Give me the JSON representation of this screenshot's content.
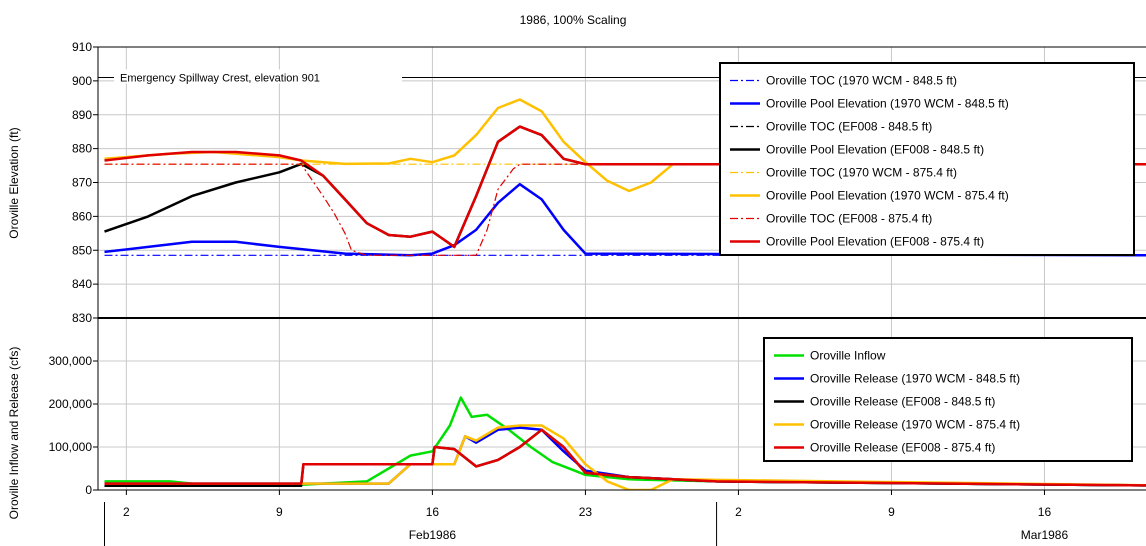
{
  "chart_data": [
    {
      "type": "line",
      "title": "1986, 100% Scaling",
      "ylabel": "Oroville Elevation (ft)",
      "ylim": [
        830,
        910
      ],
      "yticks": [
        "830",
        "840",
        "850",
        "860",
        "870",
        "880",
        "890",
        "900",
        "910"
      ],
      "xlim": [
        "1986-02-01",
        "1986-03-22"
      ],
      "x_day_ticks": [
        "2",
        "9",
        "16",
        "23",
        "2",
        "9",
        "16"
      ],
      "x_month_labels": [
        "Feb1986",
        "Mar1986"
      ],
      "grid": true,
      "legend_position": "top-right",
      "annotation": {
        "text": "Emergency Spillway Crest, elevation 901",
        "y": 901
      },
      "series": [
        {
          "name": "Oroville TOC (1970 WCM - 848.5 ft)",
          "color": "#0000ff",
          "dash": "dashdot",
          "points": [
            [
              "1986-02-01",
              848.5
            ],
            [
              "1986-03-22",
              848.5
            ]
          ]
        },
        {
          "name": "Oroville Pool Elevation (1970 WCM - 848.5 ft)",
          "color": "#0000ff",
          "dash": "solid",
          "points": [
            [
              "1986-02-01",
              849.5
            ],
            [
              "1986-02-03",
              851
            ],
            [
              "1986-02-05",
              852.5
            ],
            [
              "1986-02-07",
              852.5
            ],
            [
              "1986-02-09",
              851
            ],
            [
              "1986-02-12",
              849
            ],
            [
              "1986-02-15",
              848.5
            ],
            [
              "1986-02-16",
              849
            ],
            [
              "1986-02-17",
              851.5
            ],
            [
              "1986-02-18",
              856
            ],
            [
              "1986-02-19",
              864
            ],
            [
              "1986-02-20",
              869.5
            ],
            [
              "1986-02-21",
              865
            ],
            [
              "1986-02-22",
              856
            ],
            [
              "1986-02-23",
              849
            ],
            [
              "1986-03-22",
              848.5
            ]
          ]
        },
        {
          "name": "Oroville TOC (EF008 - 848.5 ft)",
          "color": "#000000",
          "dash": "dashdot",
          "points": []
        },
        {
          "name": "Oroville Pool Elevation (EF008 - 848.5 ft)",
          "color": "#000000",
          "dash": "solid",
          "points": [
            [
              "1986-02-01",
              855.5
            ],
            [
              "1986-02-03",
              860
            ],
            [
              "1986-02-05",
              866
            ],
            [
              "1986-02-07",
              870
            ],
            [
              "1986-02-09",
              873
            ],
            [
              "1986-02-10",
              875.5
            ],
            [
              "1986-02-11",
              872
            ],
            [
              "1986-02-12",
              865
            ],
            [
              "1986-02-13",
              858
            ],
            [
              "1986-02-14",
              854.5
            ],
            [
              "1986-02-15",
              854
            ],
            [
              "1986-02-16",
              855.5
            ],
            [
              "1986-02-17",
              851
            ],
            [
              "1986-02-18",
              866
            ],
            [
              "1986-02-19",
              882
            ],
            [
              "1986-02-20",
              886.5
            ],
            [
              "1986-02-21",
              884
            ],
            [
              "1986-02-22",
              877
            ],
            [
              "1986-02-23",
              875.4
            ],
            [
              "1986-03-22",
              875.4
            ]
          ]
        },
        {
          "name": "Oroville TOC (1970 WCM - 875.4 ft)",
          "color": "#ffc000",
          "dash": "dashdot",
          "points": [
            [
              "1986-02-01",
              875.4
            ],
            [
              "1986-03-22",
              875.4
            ]
          ]
        },
        {
          "name": "Oroville Pool Elevation (1970 WCM - 875.4 ft)",
          "color": "#ffc000",
          "dash": "solid",
          "points": [
            [
              "1986-02-01",
              877
            ],
            [
              "1986-02-04",
              878.5
            ],
            [
              "1986-02-06",
              879
            ],
            [
              "1986-02-09",
              877.5
            ],
            [
              "1986-02-10",
              876.5
            ],
            [
              "1986-02-12",
              875.5
            ],
            [
              "1986-02-14",
              875.6
            ],
            [
              "1986-02-15",
              877
            ],
            [
              "1986-02-16",
              876
            ],
            [
              "1986-02-17",
              878
            ],
            [
              "1986-02-18",
              884
            ],
            [
              "1986-02-19",
              892
            ],
            [
              "1986-02-20",
              894.5
            ],
            [
              "1986-02-21",
              891
            ],
            [
              "1986-02-22",
              882
            ],
            [
              "1986-02-23",
              876
            ],
            [
              "1986-02-24",
              870.5
            ],
            [
              "1986-02-25",
              867.5
            ],
            [
              "1986-02-26",
              870
            ],
            [
              "1986-02-27",
              875.4
            ],
            [
              "1986-03-22",
              875.4
            ]
          ]
        },
        {
          "name": "Oroville TOC (EF008 - 875.4 ft)",
          "color": "#e00000",
          "dash": "dashdot",
          "points": [
            [
              "1986-02-01",
              875.4
            ],
            [
              "1986-02-10",
              875.4
            ],
            [
              "1986-02-11",
              866
            ],
            [
              "1986-02-11.5",
              861
            ],
            [
              "1986-02-12",
              855
            ],
            [
              "1986-02-12.3",
              850
            ],
            [
              "1986-02-13",
              848.5
            ],
            [
              "1986-02-18",
              848.5
            ],
            [
              "1986-02-18.5",
              856
            ],
            [
              "1986-02-19",
              868
            ],
            [
              "1986-02-19.7",
              874
            ],
            [
              "1986-02-20",
              875.4
            ],
            [
              "1986-03-22",
              875.4
            ]
          ]
        },
        {
          "name": "Oroville Pool Elevation (EF008 - 875.4 ft)",
          "color": "#e00000",
          "dash": "solid",
          "points": [
            [
              "1986-02-01",
              876.5
            ],
            [
              "1986-02-03",
              878
            ],
            [
              "1986-02-05",
              879
            ],
            [
              "1986-02-07",
              879
            ],
            [
              "1986-02-09",
              878
            ],
            [
              "1986-02-10",
              876.5
            ],
            [
              "1986-02-11",
              872
            ],
            [
              "1986-02-12",
              865
            ],
            [
              "1986-02-13",
              858
            ],
            [
              "1986-02-14",
              854.5
            ],
            [
              "1986-02-15",
              854
            ],
            [
              "1986-02-16",
              855.5
            ],
            [
              "1986-02-17",
              851
            ],
            [
              "1986-02-18",
              866
            ],
            [
              "1986-02-19",
              882
            ],
            [
              "1986-02-20",
              886.5
            ],
            [
              "1986-02-21",
              884
            ],
            [
              "1986-02-22",
              877
            ],
            [
              "1986-02-23",
              875.4
            ],
            [
              "1986-03-22",
              875.4
            ]
          ]
        }
      ]
    },
    {
      "type": "line",
      "title": "",
      "ylabel": "Oroville Inflow and Release (cfs)",
      "ylim": [
        0,
        400000
      ],
      "yticks": [
        "0",
        "100,000",
        "200,000",
        "300,000"
      ],
      "xlim": [
        "1986-02-01",
        "1986-03-22"
      ],
      "grid": true,
      "legend_position": "right",
      "series": [
        {
          "name": "Oroville Inflow",
          "color": "#00e000",
          "points": [
            [
              "1986-02-01",
              20000
            ],
            [
              "1986-02-04",
              20000
            ],
            [
              "1986-02-05",
              15000
            ],
            [
              "1986-02-10",
              12000
            ],
            [
              "1986-02-13",
              20000
            ],
            [
              "1986-02-14",
              50000
            ],
            [
              "1986-02-15",
              80000
            ],
            [
              "1986-02-16",
              90000
            ],
            [
              "1986-02-16.8",
              150000
            ],
            [
              "1986-02-17.3",
              215000
            ],
            [
              "1986-02-17.8",
              170000
            ],
            [
              "1986-02-18.5",
              175000
            ],
            [
              "1986-02-19.5",
              140000
            ],
            [
              "1986-02-20.5",
              100000
            ],
            [
              "1986-02-21.5",
              65000
            ],
            [
              "1986-02-22.5",
              45000
            ],
            [
              "1986-02-23",
              35000
            ],
            [
              "1986-02-25",
              25000
            ],
            [
              "1986-03-01",
              20000
            ],
            [
              "1986-03-22",
              10000
            ]
          ]
        },
        {
          "name": "Oroville Release (1970 WCM - 848.5 ft)",
          "color": "#0000ff",
          "points": [
            [
              "1986-02-01",
              15000
            ],
            [
              "1986-02-10",
              15000
            ],
            [
              "1986-02-14",
              15000
            ],
            [
              "1986-02-15",
              60000
            ],
            [
              "1986-02-17",
              60000
            ],
            [
              "1986-02-17.5",
              125000
            ],
            [
              "1986-02-18",
              110000
            ],
            [
              "1986-02-19",
              140000
            ],
            [
              "1986-02-20",
              145000
            ],
            [
              "1986-02-21",
              140000
            ],
            [
              "1986-02-22",
              90000
            ],
            [
              "1986-02-23",
              45000
            ],
            [
              "1986-02-25",
              30000
            ],
            [
              "1986-03-01",
              20000
            ],
            [
              "1986-03-22",
              10000
            ]
          ]
        },
        {
          "name": "Oroville Release (EF008 - 848.5 ft)",
          "color": "#000000",
          "points": [
            [
              "1986-02-01",
              10000
            ],
            [
              "1986-02-10",
              10000
            ],
            [
              "1986-02-10.1",
              60000
            ],
            [
              "1986-02-16",
              60000
            ],
            [
              "1986-02-16.1",
              100000
            ],
            [
              "1986-02-17",
              95000
            ],
            [
              "1986-02-18",
              55000
            ],
            [
              "1986-02-19",
              70000
            ],
            [
              "1986-02-20",
              100000
            ],
            [
              "1986-02-21",
              140000
            ],
            [
              "1986-02-22",
              100000
            ],
            [
              "1986-02-23",
              40000
            ],
            [
              "1986-02-25",
              30000
            ],
            [
              "1986-03-01",
              20000
            ],
            [
              "1986-03-22",
              10000
            ]
          ]
        },
        {
          "name": "Oroville Release (1970 WCM - 875.4 ft)",
          "color": "#ffc000",
          "points": [
            [
              "1986-02-01",
              15000
            ],
            [
              "1986-02-14",
              15000
            ],
            [
              "1986-02-15",
              60000
            ],
            [
              "1986-02-17",
              60000
            ],
            [
              "1986-02-17.5",
              125000
            ],
            [
              "1986-02-18",
              115000
            ],
            [
              "1986-02-19",
              145000
            ],
            [
              "1986-02-20",
              150000
            ],
            [
              "1986-02-21",
              150000
            ],
            [
              "1986-02-22",
              120000
            ],
            [
              "1986-02-23",
              60000
            ],
            [
              "1986-02-24",
              20000
            ],
            [
              "1986-02-25",
              0
            ],
            [
              "1986-02-26",
              0
            ],
            [
              "1986-02-27",
              25000
            ],
            [
              "1986-03-22",
              10000
            ]
          ]
        },
        {
          "name": "Oroville Release (EF008 - 875.4 ft)",
          "color": "#e00000",
          "points": [
            [
              "1986-02-01",
              15000
            ],
            [
              "1986-02-10",
              15000
            ],
            [
              "1986-02-10.1",
              60000
            ],
            [
              "1986-02-16",
              60000
            ],
            [
              "1986-02-16.1",
              100000
            ],
            [
              "1986-02-17",
              95000
            ],
            [
              "1986-02-18",
              55000
            ],
            [
              "1986-02-19",
              70000
            ],
            [
              "1986-02-20",
              100000
            ],
            [
              "1986-02-21",
              140000
            ],
            [
              "1986-02-22",
              100000
            ],
            [
              "1986-02-23",
              40000
            ],
            [
              "1986-02-25",
              30000
            ],
            [
              "1986-03-01",
              20000
            ],
            [
              "1986-03-22",
              10000
            ]
          ]
        }
      ]
    }
  ]
}
